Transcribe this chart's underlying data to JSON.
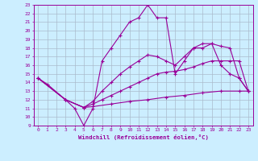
{
  "xlabel": "Windchill (Refroidissement éolien,°C)",
  "background_color": "#cceeff",
  "line_color": "#990099",
  "grid_color": "#aabbcc",
  "xlim": [
    -0.5,
    23.5
  ],
  "ylim": [
    9,
    23
  ],
  "xticks": [
    0,
    1,
    2,
    3,
    4,
    5,
    6,
    7,
    8,
    9,
    10,
    11,
    12,
    13,
    14,
    15,
    16,
    17,
    18,
    19,
    20,
    21,
    22,
    23
  ],
  "yticks": [
    9,
    10,
    11,
    12,
    13,
    14,
    15,
    16,
    17,
    18,
    19,
    20,
    21,
    22,
    23
  ],
  "series1": [
    [
      0,
      14.5
    ],
    [
      1,
      13.8
    ],
    [
      3,
      12.0
    ],
    [
      4,
      11.0
    ],
    [
      5,
      9.0
    ],
    [
      6,
      11.0
    ],
    [
      7,
      16.5
    ],
    [
      8,
      18.0
    ],
    [
      9,
      19.5
    ],
    [
      10,
      21.0
    ],
    [
      11,
      21.5
    ],
    [
      12,
      23.0
    ],
    [
      13,
      21.5
    ],
    [
      14,
      21.5
    ],
    [
      15,
      15.0
    ],
    [
      16,
      16.5
    ],
    [
      17,
      18.0
    ],
    [
      18,
      18.0
    ],
    [
      19,
      18.5
    ],
    [
      20,
      16.0
    ],
    [
      21,
      15.0
    ],
    [
      22,
      14.5
    ],
    [
      23,
      13.0
    ]
  ],
  "series2": [
    [
      0,
      14.5
    ],
    [
      3,
      12.0
    ],
    [
      5,
      11.1
    ],
    [
      6,
      11.8
    ],
    [
      7,
      13.0
    ],
    [
      8,
      14.0
    ],
    [
      9,
      15.0
    ],
    [
      10,
      15.8
    ],
    [
      11,
      16.5
    ],
    [
      12,
      17.2
    ],
    [
      13,
      17.0
    ],
    [
      14,
      16.5
    ],
    [
      15,
      16.0
    ],
    [
      16,
      17.0
    ],
    [
      17,
      18.0
    ],
    [
      18,
      18.5
    ],
    [
      19,
      18.5
    ],
    [
      20,
      18.2
    ],
    [
      21,
      18.0
    ],
    [
      22,
      14.5
    ],
    [
      23,
      13.0
    ]
  ],
  "series3": [
    [
      0,
      14.5
    ],
    [
      3,
      12.0
    ],
    [
      5,
      11.1
    ],
    [
      6,
      11.5
    ],
    [
      7,
      12.0
    ],
    [
      8,
      12.5
    ],
    [
      9,
      13.0
    ],
    [
      10,
      13.5
    ],
    [
      11,
      14.0
    ],
    [
      12,
      14.5
    ],
    [
      13,
      15.0
    ],
    [
      14,
      15.2
    ],
    [
      15,
      15.3
    ],
    [
      16,
      15.5
    ],
    [
      17,
      15.8
    ],
    [
      18,
      16.2
    ],
    [
      19,
      16.5
    ],
    [
      20,
      16.5
    ],
    [
      21,
      16.5
    ],
    [
      22,
      16.5
    ],
    [
      23,
      13.0
    ]
  ],
  "series4": [
    [
      0,
      14.5
    ],
    [
      3,
      12.0
    ],
    [
      5,
      11.1
    ],
    [
      6,
      11.2
    ],
    [
      8,
      11.5
    ],
    [
      10,
      11.8
    ],
    [
      12,
      12.0
    ],
    [
      14,
      12.3
    ],
    [
      16,
      12.5
    ],
    [
      18,
      12.8
    ],
    [
      20,
      13.0
    ],
    [
      22,
      13.0
    ],
    [
      23,
      13.0
    ]
  ]
}
